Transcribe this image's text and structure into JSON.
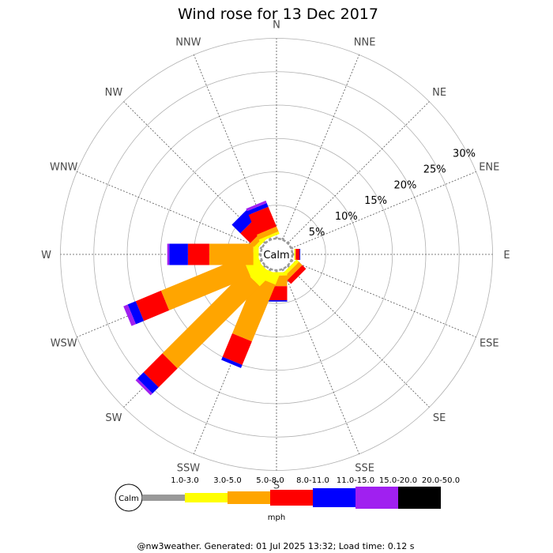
{
  "chart_data": {
    "type": "windrose",
    "title": "Wind rose for 13 Dec 2017",
    "directions": [
      "N",
      "NNE",
      "NE",
      "ENE",
      "E",
      "ESE",
      "SE",
      "SSE",
      "S",
      "SSW",
      "SW",
      "WSW",
      "W",
      "WNW",
      "NW",
      "NNW"
    ],
    "rings": [
      5,
      10,
      15,
      20,
      25,
      30
    ],
    "ring_labels": [
      "5%",
      "10%",
      "15%",
      "20%",
      "25%",
      "30%"
    ],
    "calm_label": "Calm",
    "speed_bins": [
      {
        "name": "1.0-3.0",
        "color": "#999999"
      },
      {
        "name": "3.0-5.0",
        "color": "#ffff00"
      },
      {
        "name": "5.0-8.0",
        "color": "#ffa500"
      },
      {
        "name": "8.0-11.0",
        "color": "#ff0000"
      },
      {
        "name": "11.0-15.0",
        "color": "#0000ff"
      },
      {
        "name": "15.0-20.0",
        "color": "#a020f0"
      },
      {
        "name": "20.0-50.0",
        "color": "#000000"
      }
    ],
    "units": "mph",
    "values": {
      "N": [
        0.3,
        0,
        0,
        0,
        0,
        0,
        0
      ],
      "NNE": [
        0.3,
        0,
        0,
        0,
        0,
        0,
        0
      ],
      "NE": [
        0.3,
        0,
        0,
        0,
        0,
        0,
        0
      ],
      "ENE": [
        0.3,
        0,
        0,
        0,
        0,
        0,
        0
      ],
      "E": [
        0.3,
        0.2,
        0,
        0.6,
        0.1,
        0,
        0
      ],
      "ESE": [
        0.3,
        0,
        0,
        0,
        0,
        0,
        0
      ],
      "SE": [
        0.3,
        0.5,
        0.7,
        0.8,
        0,
        0,
        0
      ],
      "SSE": [
        0.3,
        0,
        0,
        0,
        0,
        0,
        0
      ],
      "S": [
        0.3,
        0.5,
        1.6,
        2.1,
        0.2,
        0,
        0
      ],
      "SSW": [
        0.3,
        1.6,
        9.2,
        3.8,
        0.5,
        0,
        0
      ],
      "SW": [
        0.3,
        2.5,
        17.4,
        4.0,
        1.3,
        0.4,
        0
      ],
      "WSW": [
        0.3,
        2.2,
        13.2,
        4.1,
        1.3,
        0.7,
        0
      ],
      "W": [
        0.3,
        0.8,
        6.6,
        3.2,
        2.8,
        0.3,
        0
      ],
      "WNW": [
        0.3,
        0,
        0,
        0,
        0,
        0,
        0
      ],
      "NW": [
        0.3,
        0.5,
        0.8,
        2.1,
        1.8,
        0,
        0
      ],
      "NNW": [
        0.3,
        0.4,
        0.8,
        3.2,
        0.6,
        0.4,
        0
      ]
    }
  },
  "footer": "@nw3weather. Generated: 01 Jul 2025 13:32; Load time: 0.12 s"
}
